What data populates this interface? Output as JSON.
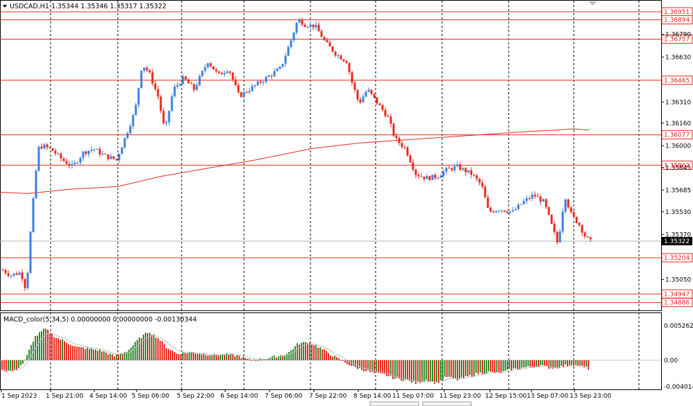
{
  "symbol_header": "USDCAD,H1  1.35344 1.35346 1.35317 1.35322",
  "macd_header": "MACD_color(5,34,5) 0.00000000 0.00000000 -0.00130344",
  "colors": {
    "bull": "#3a7fdc",
    "bear": "#e8281c",
    "level": "#e8281c",
    "ma": "#e8281c",
    "macd_up": "#2a8a2a",
    "macd_down": "#e8281c",
    "grid": "#000000"
  },
  "price_axis": {
    "ticks": [
      "1.36790",
      "1.36630",
      "1.36310",
      "1.36160",
      "1.36000",
      "1.35845",
      "1.35685",
      "1.35530",
      "1.35370",
      "1.35050"
    ],
    "current_price": "1.35322"
  },
  "levels": [
    "1.36951",
    "1.36894",
    "1.36757",
    "1.36465",
    "1.36077",
    "1.35862",
    "1.35204",
    "1.34947",
    "1.34886"
  ],
  "macd_axis": {
    "ticks": [
      "0.00526284",
      "0.00",
      "-0.00401406"
    ]
  },
  "time_axis": {
    "labels": [
      "1 Sep 2023",
      "1 Sep 21:00",
      "4 Sep 14:00",
      "5 Sep 06:00",
      "5 Sep 22:00",
      "6 Sep 14:00",
      "7 Sep 06:00",
      "7 Sep 22:00",
      "8 Sep 14:00",
      "11 Sep 07:00",
      "11 Sep 23:00",
      "12 Sep 15:00",
      "13 Sep 07:00",
      "13 Sep 23:00"
    ]
  },
  "chart_data": {
    "type": "candlestick",
    "title": "USDCAD,H1",
    "ohlc_last": {
      "open": 1.35344,
      "high": 1.35346,
      "low": 1.35317,
      "close": 1.35322
    },
    "ylim": [
      1.3484,
      1.3702
    ],
    "horizontal_levels": [
      1.36951,
      1.36894,
      1.36757,
      1.36465,
      1.36077,
      1.35862,
      1.35204,
      1.34947,
      1.34886
    ],
    "close_path": [
      [
        0,
        1.3513
      ],
      [
        15,
        1.3508
      ],
      [
        30,
        1.351
      ],
      [
        38,
        1.3497
      ],
      [
        45,
        1.3545
      ],
      [
        55,
        1.3598
      ],
      [
        62,
        1.36
      ],
      [
        75,
        1.3597
      ],
      [
        90,
        1.359
      ],
      [
        105,
        1.3585
      ],
      [
        120,
        1.3595
      ],
      [
        135,
        1.3598
      ],
      [
        150,
        1.3593
      ],
      [
        168,
        1.359
      ],
      [
        180,
        1.3605
      ],
      [
        195,
        1.3625
      ],
      [
        205,
        1.3658
      ],
      [
        215,
        1.3652
      ],
      [
        228,
        1.3635
      ],
      [
        238,
        1.361
      ],
      [
        250,
        1.364
      ],
      [
        265,
        1.3648
      ],
      [
        280,
        1.364
      ],
      [
        300,
        1.366
      ],
      [
        315,
        1.365
      ],
      [
        330,
        1.3655
      ],
      [
        345,
        1.3635
      ],
      [
        360,
        1.364
      ],
      [
        375,
        1.3645
      ],
      [
        390,
        1.365
      ],
      [
        405,
        1.3655
      ],
      [
        420,
        1.3675
      ],
      [
        430,
        1.369
      ],
      [
        440,
        1.3686
      ],
      [
        455,
        1.3685
      ],
      [
        470,
        1.3673
      ],
      [
        485,
        1.3665
      ],
      [
        500,
        1.366
      ],
      [
        508,
        1.3645
      ],
      [
        518,
        1.363
      ],
      [
        530,
        1.364
      ],
      [
        545,
        1.363
      ],
      [
        560,
        1.362
      ],
      [
        570,
        1.3605
      ],
      [
        585,
        1.3598
      ],
      [
        600,
        1.358
      ],
      [
        615,
        1.3577
      ],
      [
        630,
        1.3578
      ],
      [
        645,
        1.3583
      ],
      [
        660,
        1.3585
      ],
      [
        680,
        1.358
      ],
      [
        695,
        1.3572
      ],
      [
        705,
        1.3553
      ],
      [
        720,
        1.3555
      ],
      [
        740,
        1.3553
      ],
      [
        755,
        1.356
      ],
      [
        770,
        1.3565
      ],
      [
        785,
        1.356
      ],
      [
        795,
        1.3545
      ],
      [
        805,
        1.353
      ],
      [
        815,
        1.3565
      ],
      [
        825,
        1.355
      ],
      [
        835,
        1.3545
      ],
      [
        845,
        1.3535
      ],
      [
        852,
        1.3532
      ]
    ],
    "moving_average": [
      [
        0,
        1.3567
      ],
      [
        40,
        1.3566
      ],
      [
        100,
        1.3569
      ],
      [
        170,
        1.3571
      ],
      [
        230,
        1.3578
      ],
      [
        300,
        1.3584
      ],
      [
        370,
        1.359
      ],
      [
        450,
        1.3598
      ],
      [
        520,
        1.3602
      ],
      [
        580,
        1.3604
      ],
      [
        640,
        1.3606
      ],
      [
        700,
        1.3608
      ],
      [
        760,
        1.361
      ],
      [
        800,
        1.3611
      ],
      [
        828,
        1.3612
      ],
      [
        850,
        1.3611
      ]
    ],
    "macd_histogram": [
      [
        5,
        -0.0016
      ],
      [
        20,
        -0.0017
      ],
      [
        35,
        -0.0003
      ],
      [
        50,
        0.0035
      ],
      [
        65,
        0.0048
      ],
      [
        80,
        0.0035
      ],
      [
        95,
        0.0028
      ],
      [
        110,
        0.002
      ],
      [
        125,
        0.0018
      ],
      [
        145,
        0.0015
      ],
      [
        165,
        0.0006
      ],
      [
        185,
        0.0015
      ],
      [
        200,
        0.0032
      ],
      [
        215,
        0.0044
      ],
      [
        230,
        0.0032
      ],
      [
        240,
        0.002
      ],
      [
        255,
        0.001
      ],
      [
        275,
        0.0012
      ],
      [
        290,
        0.001
      ],
      [
        310,
        0.0008
      ],
      [
        330,
        0.0009
      ],
      [
        345,
        0.0006
      ],
      [
        360,
        0.0
      ],
      [
        380,
        0.0002
      ],
      [
        400,
        0.0006
      ],
      [
        415,
        0.001
      ],
      [
        430,
        0.0025
      ],
      [
        445,
        0.0028
      ],
      [
        460,
        0.002
      ],
      [
        475,
        0.001
      ],
      [
        490,
        0.0001
      ],
      [
        510,
        -0.001
      ],
      [
        525,
        -0.0015
      ],
      [
        540,
        -0.002
      ],
      [
        555,
        -0.0022
      ],
      [
        570,
        -0.0028
      ],
      [
        585,
        -0.003
      ],
      [
        600,
        -0.0035
      ],
      [
        615,
        -0.003
      ],
      [
        630,
        -0.0035
      ],
      [
        645,
        -0.0025
      ],
      [
        660,
        -0.003
      ],
      [
        675,
        -0.0025
      ],
      [
        690,
        -0.002
      ],
      [
        705,
        -0.0018
      ],
      [
        720,
        -0.002
      ],
      [
        735,
        -0.0015
      ],
      [
        750,
        -0.0012
      ],
      [
        765,
        -0.001
      ],
      [
        780,
        -0.0008
      ],
      [
        795,
        -0.0012
      ],
      [
        810,
        -0.001
      ],
      [
        825,
        -0.0006
      ],
      [
        840,
        -0.001
      ],
      [
        848,
        -0.0013
      ]
    ]
  }
}
